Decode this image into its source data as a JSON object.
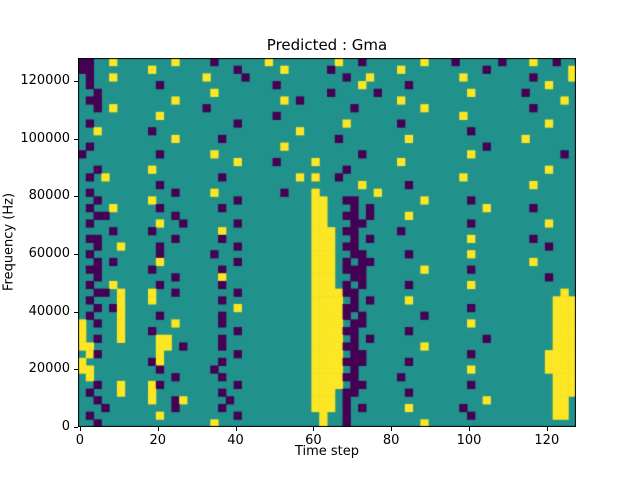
{
  "chart_data": {
    "type": "heatmap",
    "title": "Predicted : Gma",
    "xlabel": "Time step",
    "ylabel": "Frequency (Hz)",
    "x_range": [
      -0.5,
      127.5
    ],
    "y_range": [
      0,
      128000
    ],
    "xtick_values": [
      0,
      20,
      40,
      60,
      80,
      100,
      120
    ],
    "ytick_values": [
      0,
      20000,
      40000,
      60000,
      80000,
      100000,
      120000
    ],
    "colormap": "viridis-3-level",
    "palette": {
      ".": "#21918c",
      "P": "#440154",
      "Y": "#fde725"
    },
    "legend": null,
    "grid_on": false,
    "grid": {
      "cols": 64,
      "rows": 48,
      "cell_time_steps": 2,
      "cell_hz": 2667,
      "rows_top_to_bottom": [
        [
          "PP..Y...",
          "....Y...",
          ".P......",
          "Y.......",
          ".Y..P...",
          "....Y...",
          "P.....P.",
          "..Y..P.."
        ],
        [
          "PP......",
          ".Y......",
          "....P...",
          "..Y.....",
          "P.......",
          ".Y......",
          "....P...",
          ".......Y"
        ],
        [
          ".P..Y...",
          "........",
          "Y....P..",
          "........",
          "..P..Y..",
          "........",
          ".Y......",
          "..P....Y"
        ],
        [
          ".P......",
          "..P.....",
          "........",
          ".P......",
          "....Y...",
          "..P.....",
          "........",
          "....Y..."
        ],
        [
          "..P.....",
          "........",
          ".Y......",
          "........",
          "P.....P.",
          "........",
          "..Y.....",
          ".P......"
        ],
        [
          ".PP.....",
          "....Y...",
          "........",
          "..Y.P...",
          "........",
          ".Y......",
          "........",
          "......Y."
        ],
        [
          "..P.Y...",
          "........",
          "P.......",
          "........",
          "...P....",
          "....Y...",
          "........",
          "..P....."
        ],
        [
          "........",
          "..Y.....",
          "........",
          ".P......",
          "........",
          "........",
          ".Y......",
          "........"
        ],
        [
          ".P......",
          "........",
          "....P...",
          "........",
          "..Y.....",
          ".P......",
          "........",
          "....Y..."
        ],
        [
          "..Y.....",
          ".P......",
          "........",
          "....Y...",
          "........",
          "........",
          "..P.....",
          "........"
        ],
        [
          "........",
          "....Y...",
          "..P.....",
          "........",
          ".P......",
          "..Y.....",
          "........",
          ".Y......"
        ],
        [
          ".P......",
          "........",
          "........",
          "..Y.....",
          "........",
          "........",
          "....P...",
          "........"
        ],
        [
          "P.......",
          "..P.....",
          ".Y......",
          "........",
          "....P...",
          "........",
          "..Y.....",
          "......P."
        ],
        [
          "........",
          "........",
          "....Y...",
          ".P....Y.",
          "........",
          ".Y......",
          "........",
          "........"
        ],
        [
          "..P.....",
          ".Y......",
          "........",
          "........",
          "..P.....",
          "........",
          "........",
          "....Y..."
        ],
        [
          ".P.Y....",
          "........",
          "..P.....",
          "....Y.Y.",
          ".P......",
          "........",
          ".Y......",
          "........"
        ],
        [
          "........",
          "..P.....",
          "........",
          "........",
          "....Y...",
          "..P.....",
          "........",
          "..Y....."
        ],
        [
          ".P......",
          "....P...",
          ".Y......",
          "..P...Y.",
          "......Y.",
          "........",
          "........",
          "........"
        ],
        [
          "..P.....",
          ".Y......",
          "....P...",
          "......YY",
          "..PP....",
          "....Y...",
          "..P.....",
          "........"
        ],
        [
          ".P..Y...",
          "..P.....",
          "..P.....",
          "......YY",
          "...P.P..",
          "........",
          "....Y...",
          "..P....."
        ],
        [
          "..PP....",
          "....P...",
          "........",
          "......YY",
          "..PP.P..",
          "..Y.....",
          "........",
          "........"
        ],
        [
          ".P......",
          "..Y..P..",
          "....P...",
          "......YY",
          "...PP...",
          "........",
          "..P.....",
          "....Y..."
        ],
        [
          "....P...",
          ".P......",
          "..Y.....",
          "......YY",
          "Y.PP....",
          ".P......",
          "........",
          "........"
        ],
        [
          ".PP.....",
          "....P...",
          "..P.....",
          "......YY",
          "Y..P.P..",
          "........",
          "..Y.....",
          "..P....."
        ],
        [
          "..P..Y..",
          "..P.....",
          "....P...",
          "......YY",
          "Y.PP....",
          "........",
          "........",
          "....P..."
        ],
        [
          ".P......",
          "..P.....",
          ".P......",
          "......YY",
          "Y..PP...",
          "..P.....",
          "..Y.....",
          "........"
        ],
        [
          "..P.P...",
          "..Y.....",
          "....P...",
          "......YY",
          "Y.P.PP..",
          "........",
          "........",
          "..Y....."
        ],
        [
          ".PP.....",
          ".P......",
          "..P.....",
          "......YY",
          "Y.PPP...",
          "....Y...",
          "..P.....",
          "........"
        ],
        [
          "..P.....",
          "....P...",
          "..Y.....",
          "......YY",
          "Y..PP...",
          "........",
          "........",
          "....P..."
        ],
        [
          ".P..Y...",
          "..P.....",
          "..P.....",
          "......YY",
          "Y.P.P...",
          "..P.....",
          "..Y.....",
          "........"
        ],
        [
          "..PP.Y..",
          ".Y..P...",
          "....P...",
          "......YY",
          "YYPP....",
          "........",
          "........",
          "......Y."
        ],
        [
          ".P...Y..",
          ".Y......",
          "..P.....",
          "......YY",
          "YY.P.P..",
          "..Y.....",
          "........",
          ".....YYY"
        ],
        [
          "..P.PY..",
          "........",
          "....Y...",
          "......YY",
          "YYPP....",
          "........",
          "..P.....",
          ".....YYY"
        ],
        [
          ".P...Y..",
          "..P.....",
          "..P.....",
          "......YY",
          "YYP.P...",
          "....P...",
          "........",
          ".....YYY"
        ],
        [
          "Y.P..Y..",
          "....Y...",
          "..P.....",
          "......YY",
          "YY.PP...",
          "........",
          "..Y.....",
          ".....YYY"
        ],
        [
          "Y....Y..",
          ".P......",
          "....P...",
          "......YY",
          "YYPP....",
          "..P.....",
          "........",
          ".....YYY"
        ],
        [
          "Y.P..Y..",
          "..YY....",
          "..P.....",
          "......YY",
          "YY.P.P..",
          "........",
          "....P...",
          ".....YYY"
        ],
        [
          "YY......",
          "..YY.P..",
          "..P.....",
          "......YY",
          "YYPP....",
          "....Y...",
          "........",
          ".....YYY"
        ],
        [
          ".YP.....",
          "..Y.....",
          "....P...",
          "......YY",
          "YY.PP...",
          "........",
          "..P.....",
          "....YYYY"
        ],
        [
          "Y.......",
          ".PY.....",
          "..P.....",
          "......YY",
          "YYPPP...",
          "..P.....",
          "........",
          "....YYYY"
        ],
        [
          "YY......",
          "..P.....",
          ".P......",
          "......YY",
          "YY.P....",
          "........",
          "..Y.....",
          "....YYYY"
        ],
        [
          ".Y......",
          "....P...",
          "..P.....",
          "......YY",
          "YYPP....",
          ".P......",
          "........",
          ".....YYY"
        ],
        [
          "..P..Y..",
          ".YP.....",
          "....P...",
          "......YY",
          "YY.PP...",
          "........",
          "..P.....",
          ".....YYY"
        ],
        [
          ".P...Y..",
          ".Y......",
          "..P.....",
          "......YY",
          "Y.PP....",
          "..P.....",
          "........",
          ".....YYY"
        ],
        [
          "..P.....",
          ".Y..PY..",
          "...P....",
          "......YY",
          "Y.P.....",
          "........",
          "....Y...",
          ".....YY."
        ],
        [
          "...P....",
          "....P...",
          "..P.....",
          "......YY",
          "Y.P.P...",
          "..Y.....",
          ".P......",
          ".....YY."
        ],
        [
          ".P......",
          "..Y.....",
          "....P...",
          ".......Y",
          "..P.....",
          "........",
          "..P.....",
          ".....YY."
        ],
        [
          "..P.....",
          "........",
          ".Y......",
          ".......Y",
          "..P.....",
          "....Y...",
          "........",
          "........"
        ]
      ]
    }
  }
}
